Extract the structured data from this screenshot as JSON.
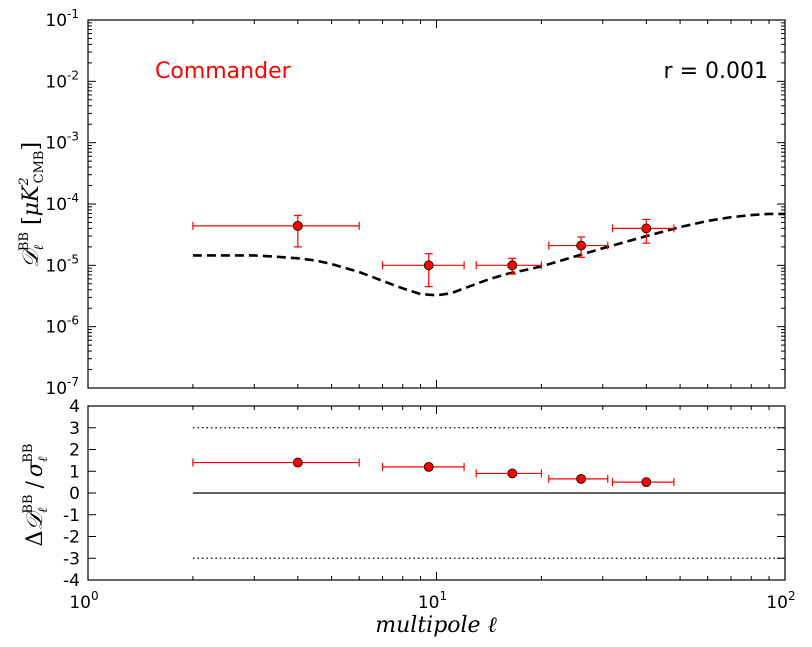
{
  "chart_data": [
    {
      "type": "scatter",
      "panel": "top",
      "xscale": "log",
      "yscale": "log",
      "xlim": [
        1,
        100
      ],
      "ylim": [
        1e-07,
        0.1
      ],
      "ylabel": "D_ℓ^BB [μK²_CMB]",
      "ylabel_parts": {
        "main": "𝒟",
        "sub": "ℓ",
        "sup": "BB",
        "unit": "μK",
        "unit_sup": "2",
        "unit_sub": "CMB"
      },
      "yticks": [
        {
          "base": "10",
          "exp": "-7",
          "value": 1e-07
        },
        {
          "base": "10",
          "exp": "-6",
          "value": 1e-06
        },
        {
          "base": "10",
          "exp": "-5",
          "value": 1e-05
        },
        {
          "base": "10",
          "exp": "-4",
          "value": 0.0001
        },
        {
          "base": "10",
          "exp": "-3",
          "value": 0.001
        },
        {
          "base": "10",
          "exp": "-2",
          "value": 0.01
        },
        {
          "base": "10",
          "exp": "-1",
          "value": 0.1
        }
      ],
      "annotations": {
        "method": "Commander",
        "r_label": "r = 0.001"
      },
      "colors": {
        "method": "#ff0000",
        "points": "#ff0000",
        "model": "#000000"
      },
      "points": [
        {
          "x": 4,
          "xerr": [
            2,
            6
          ],
          "y": 4.4e-05,
          "yerr": [
            2e-05,
            6.5e-05
          ]
        },
        {
          "x": 9.5,
          "xerr": [
            7,
            12
          ],
          "y": 1e-05,
          "yerr": [
            4.5e-06,
            1.55e-05
          ]
        },
        {
          "x": 16.5,
          "xerr": [
            13,
            20
          ],
          "y": 1e-05,
          "yerr": [
            7.2e-06,
            1.3e-05
          ]
        },
        {
          "x": 26,
          "xerr": [
            21,
            31
          ],
          "y": 2.1e-05,
          "yerr": [
            1.35e-05,
            2.9e-05
          ]
        },
        {
          "x": 40,
          "xerr": [
            32,
            48
          ],
          "y": 4e-05,
          "yerr": [
            2.3e-05,
            5.6e-05
          ]
        }
      ],
      "model": {
        "name": "r = 0.001 model",
        "x": [
          2,
          2.5,
          3,
          3.5,
          4,
          4.5,
          5,
          6,
          7,
          8,
          9,
          10,
          11,
          12,
          14,
          16,
          18,
          20,
          25,
          30,
          40,
          50,
          60,
          70,
          80,
          90,
          100
        ],
        "y": [
          1.45e-05,
          1.45e-05,
          1.45e-05,
          1.38e-05,
          1.3e-05,
          1.2e-05,
          1.05e-05,
          7.8e-06,
          5.6e-06,
          4.2e-06,
          3.4e-06,
          3.25e-06,
          3.5e-06,
          4.2e-06,
          5.8e-06,
          7.3e-06,
          8.4e-06,
          9.6e-06,
          1.4e-05,
          1.9e-05,
          3e-05,
          4.2e-05,
          5.3e-05,
          6.1e-05,
          6.6e-05,
          6.9e-05,
          6.9e-05
        ]
      }
    },
    {
      "type": "scatter",
      "panel": "bottom",
      "xscale": "log",
      "xlim": [
        1,
        100
      ],
      "ylim": [
        -4,
        4
      ],
      "xlabel": "multipole ℓ",
      "ylabel": "Δ D_ℓ^BB / σ_ℓ^BB",
      "ylabel_parts": {
        "delta": "Δ",
        "main": "𝒟",
        "sub": "ℓ",
        "sup": "BB",
        "slash": "/",
        "sigma": "σ"
      },
      "yticks": [
        "-4",
        "-3",
        "-2",
        "-1",
        "0",
        "1",
        "2",
        "3",
        "4"
      ],
      "xticks": [
        {
          "base": "10",
          "exp": "0",
          "value": 1
        },
        {
          "base": "10",
          "exp": "1",
          "value": 10
        },
        {
          "base": "10",
          "exp": "2",
          "value": 100
        }
      ],
      "reference_lines": [
        {
          "y": 0,
          "style": "solid",
          "xrange": [
            2,
            100
          ]
        },
        {
          "y": 3,
          "style": "dotted",
          "xrange": [
            2,
            100
          ]
        },
        {
          "y": -3,
          "style": "dotted",
          "xrange": [
            2,
            100
          ]
        }
      ],
      "points": [
        {
          "x": 4,
          "xerr": [
            2,
            6
          ],
          "y": 1.4
        },
        {
          "x": 9.5,
          "xerr": [
            7,
            12
          ],
          "y": 1.2
        },
        {
          "x": 16.5,
          "xerr": [
            13,
            20
          ],
          "y": 0.9
        },
        {
          "x": 26,
          "xerr": [
            21,
            31
          ],
          "y": 0.65
        },
        {
          "x": 40,
          "xerr": [
            32,
            48
          ],
          "y": 0.5
        }
      ]
    }
  ]
}
